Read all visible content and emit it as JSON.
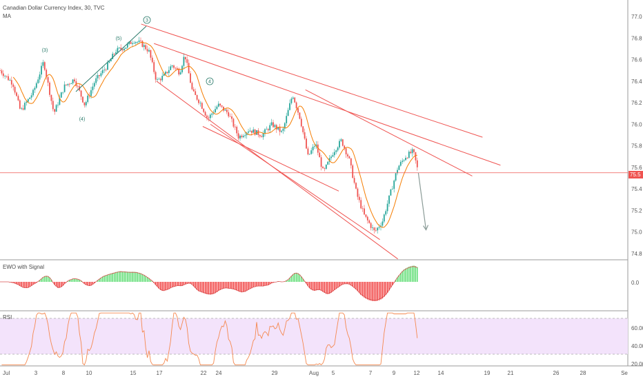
{
  "header": {
    "title": "Canadian Dollar Currency Index, 30, TVC",
    "ma_label": "MA"
  },
  "price_tag": "75.5",
  "colors": {
    "up": "#26a69a",
    "down": "#ef5350",
    "trendline": "#ef5350",
    "ma": "#f57c00",
    "ewo_up": "#4cd964",
    "ewo_down": "#ef2929",
    "rsi_line": "#f5884f",
    "rsi_band": "#f3e3fb",
    "wave": "#2a7a6a",
    "arrow": "#8a9b97"
  },
  "panels": {
    "ewo": {
      "label": "EWO with Signal",
      "tick": "0.0"
    },
    "rsi": {
      "label": "RSI",
      "ticks": [
        "60.00",
        "40.00",
        "20.00"
      ]
    }
  },
  "waves": [
    "(3)",
    "(4)",
    "(5)",
    "3",
    "4"
  ],
  "chart_data": [
    {
      "type": "candlestick",
      "title": "Canadian Dollar Currency Index, 30, TVC",
      "ylim": [
        74.7,
        77.1
      ],
      "y_ticks": [
        "77.0",
        "76.8",
        "76.6",
        "76.4",
        "76.2",
        "76.0",
        "75.8",
        "75.6",
        "75.4",
        "75.2",
        "75.0",
        "74.8"
      ],
      "x_ticks": [
        "Jul",
        "3",
        "8",
        "10",
        "15",
        "17",
        "22",
        "24",
        "29",
        "Aug",
        "5",
        "7",
        "9",
        "12",
        "14",
        "19",
        "21",
        "26",
        "28",
        "Se"
      ],
      "last_price": 75.5,
      "path_points": [
        [
          0,
          76.5
        ],
        [
          0.05,
          76.38
        ],
        [
          0.08,
          76.12
        ],
        [
          0.13,
          76.3
        ],
        [
          0.17,
          76.58
        ],
        [
          0.21,
          76.1
        ],
        [
          0.25,
          76.35
        ],
        [
          0.29,
          76.42
        ],
        [
          0.33,
          76.18
        ],
        [
          0.37,
          76.4
        ],
        [
          0.42,
          76.55
        ],
        [
          0.45,
          76.68
        ],
        [
          0.49,
          76.72
        ],
        [
          0.52,
          76.78
        ],
        [
          0.55,
          76.75
        ],
        [
          0.58,
          76.68
        ],
        [
          0.61,
          76.4
        ],
        [
          0.64,
          76.45
        ],
        [
          0.67,
          76.55
        ],
        [
          0.7,
          76.48
        ],
        [
          0.72,
          76.65
        ],
        [
          0.75,
          76.3
        ],
        [
          0.78,
          76.2
        ],
        [
          0.81,
          76.05
        ],
        [
          0.85,
          76.18
        ],
        [
          0.89,
          76.1
        ],
        [
          0.93,
          75.88
        ],
        [
          0.97,
          75.95
        ],
        [
          1.02,
          75.9
        ],
        [
          1.06,
          76.0
        ],
        [
          1.1,
          75.92
        ],
        [
          1.14,
          76.28
        ],
        [
          1.17,
          76.05
        ],
        [
          1.2,
          75.7
        ],
        [
          1.23,
          75.82
        ],
        [
          1.26,
          75.55
        ],
        [
          1.3,
          75.75
        ],
        [
          1.33,
          75.85
        ],
        [
          1.36,
          75.68
        ],
        [
          1.39,
          75.35
        ],
        [
          1.42,
          75.15
        ],
        [
          1.46,
          75.0
        ],
        [
          1.49,
          75.1
        ],
        [
          1.52,
          75.35
        ],
        [
          1.55,
          75.6
        ],
        [
          1.58,
          75.7
        ],
        [
          1.61,
          75.75
        ],
        [
          1.63,
          75.55
        ]
      ],
      "trendlines": [
        {
          "from": [
            0.55,
            76.93
          ],
          "to": [
            1.88,
            75.88
          ]
        },
        {
          "from": [
            0.6,
            76.75
          ],
          "to": [
            1.95,
            75.62
          ]
        },
        {
          "from": [
            1.19,
            76.32
          ],
          "to": [
            1.84,
            75.52
          ]
        },
        {
          "from": [
            0.61,
            76.4
          ],
          "to": [
            1.55,
            74.75
          ]
        },
        {
          "from": [
            0.82,
            76.0
          ],
          "to": [
            1.48,
            74.93
          ]
        },
        {
          "from": [
            0.79,
            75.98
          ],
          "to": [
            1.32,
            75.38
          ]
        }
      ],
      "projection": {
        "from": [
          1.63,
          75.55
        ],
        "to": [
          1.66,
          75.02
        ]
      },
      "horizontal_line": 75.55
    },
    {
      "type": "bar",
      "title": "EWO with Signal",
      "series_note": "histogram oscillating around 0.0"
    },
    {
      "type": "line",
      "title": "RSI",
      "ylim": [
        15,
        75
      ],
      "band": [
        30,
        70
      ]
    }
  ]
}
